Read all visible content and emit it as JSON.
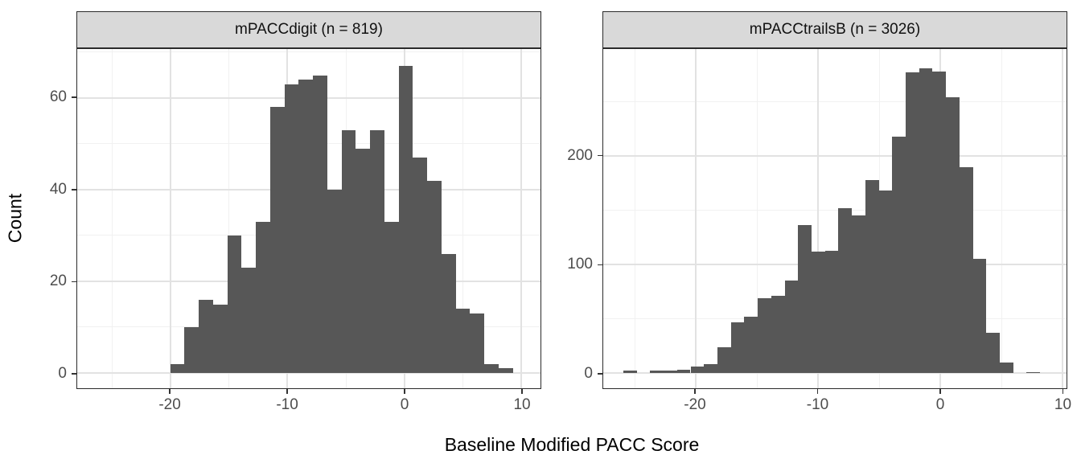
{
  "figure": {
    "x_axis_title": "Baseline Modified PACC Score",
    "y_axis_title": "Count"
  },
  "colors": {
    "background": "#ffffff",
    "bar_fill": "#575757",
    "strip_background": "#d9d9d9",
    "strip_border": "#2b2b2b",
    "panel_border": "#2b2b2b",
    "grid_major": "#e2e2e2",
    "grid_minor": "#f1f1f1",
    "tick_mark": "#333333",
    "tick_label_color": "#4d4d4d",
    "title_color": "#000000"
  },
  "chart_data": {
    "type": "histogram",
    "title": "",
    "xlabel": "Baseline Modified PACC Score",
    "ylabel": "Count",
    "grid": true,
    "facets": [
      {
        "strip_label": "mPACCdigit (n = 819)",
        "n": 819,
        "x_domain": [
          -27.95,
          11.64
        ],
        "y_domain": [
          -3.32,
          70.7
        ],
        "x_ticks": [
          {
            "value": -20,
            "label": "-20"
          },
          {
            "value": -10,
            "label": "-10"
          },
          {
            "value": 0,
            "label": "0"
          },
          {
            "value": 10,
            "label": "10"
          }
        ],
        "x_minor": [
          -25,
          -15,
          -5,
          5
        ],
        "y_ticks": [
          {
            "value": 0,
            "label": "0"
          },
          {
            "value": 20,
            "label": "20"
          },
          {
            "value": 40,
            "label": "40"
          },
          {
            "value": 60,
            "label": "60"
          }
        ],
        "y_minor": [
          10,
          30,
          50,
          70
        ],
        "bins": {
          "start": -20.0,
          "width": 1.22,
          "counts": [
            2,
            10,
            16,
            15,
            30,
            23,
            33,
            58,
            63,
            64,
            65,
            40,
            53,
            49,
            53,
            33,
            67,
            47,
            42,
            26,
            14,
            13,
            2,
            1
          ]
        }
      },
      {
        "strip_label": "mPACCtrailsB (n = 3026)",
        "n": 3026,
        "x_domain": [
          -27.54,
          10.36
        ],
        "y_domain": [
          -14.0,
          298.5
        ],
        "x_ticks": [
          {
            "value": -20,
            "label": "-20"
          },
          {
            "value": -10,
            "label": "-10"
          },
          {
            "value": 0,
            "label": "0"
          },
          {
            "value": 10,
            "label": "10"
          }
        ],
        "x_minor": [
          -25,
          -15,
          -5,
          5
        ],
        "y_ticks": [
          {
            "value": 0,
            "label": "0"
          },
          {
            "value": 100,
            "label": "100"
          },
          {
            "value": 200,
            "label": "200"
          }
        ],
        "y_minor": [
          50,
          150,
          250
        ],
        "bins": {
          "start": -25.9,
          "width": 1.1,
          "counts": [
            2,
            0,
            2,
            2,
            3,
            6,
            8,
            24,
            47,
            52,
            69,
            71,
            85,
            136,
            112,
            113,
            152,
            145,
            178,
            168,
            218,
            277,
            281,
            278,
            254,
            190,
            105,
            37,
            10,
            0,
            1
          ]
        }
      }
    ]
  }
}
